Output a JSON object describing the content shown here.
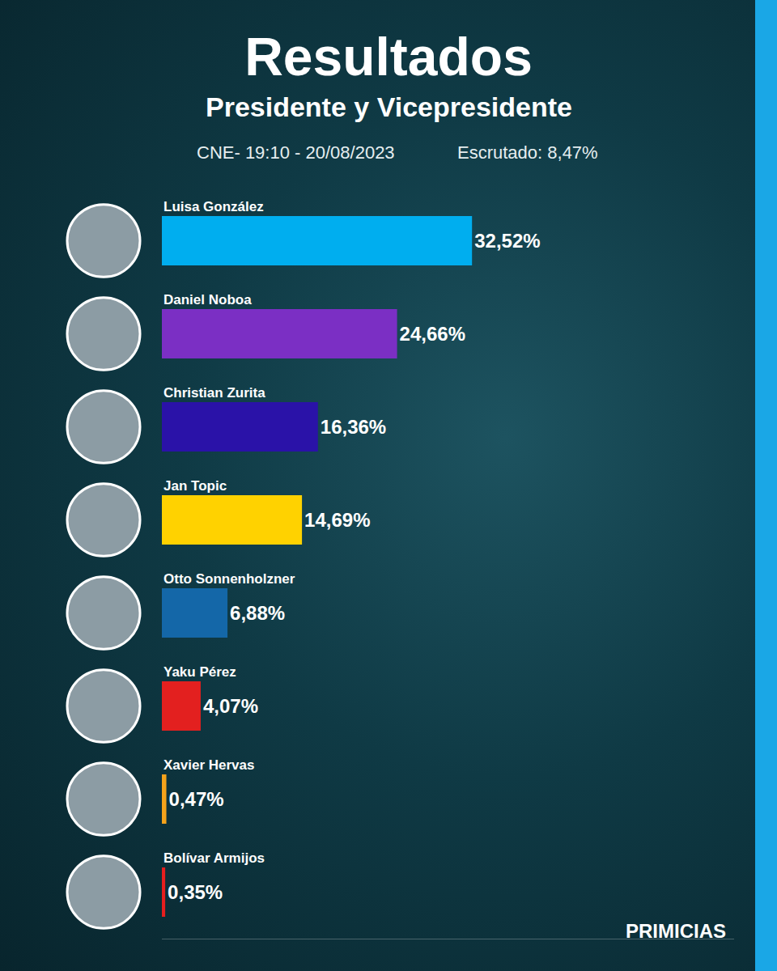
{
  "chart_data": {
    "type": "bar",
    "orientation": "horizontal",
    "title": "Resultados",
    "subtitle": "Presidente y Vicepresidente",
    "annotations": [
      "CNE- 19:10 - 20/08/2023",
      "Escrutado: 8,47%"
    ],
    "source": "PRIMICIAS",
    "categories": [
      "Luisa González",
      "Daniel Noboa",
      "Christian Zurita",
      "Jan Topic",
      "Otto Sonnenholzner",
      "Yaku Pérez",
      "Xavier Hervas",
      "Bolívar Armijos"
    ],
    "values": [
      32.52,
      24.66,
      16.36,
      14.69,
      6.88,
      4.07,
      0.47,
      0.35
    ],
    "value_labels": [
      "32,52%",
      "24,66%",
      "16,36%",
      "14,69%",
      "6,88%",
      "4,07%",
      "0,47%",
      "0,35%"
    ],
    "colors": [
      "#00aeef",
      "#7b2fc4",
      "#2a12a8",
      "#ffd200",
      "#1467a8",
      "#e3201f",
      "#f5a31b",
      "#e61e1e"
    ],
    "xlim": [
      0,
      60
    ],
    "data_labels": true,
    "tick_labels": false,
    "grid": false
  }
}
